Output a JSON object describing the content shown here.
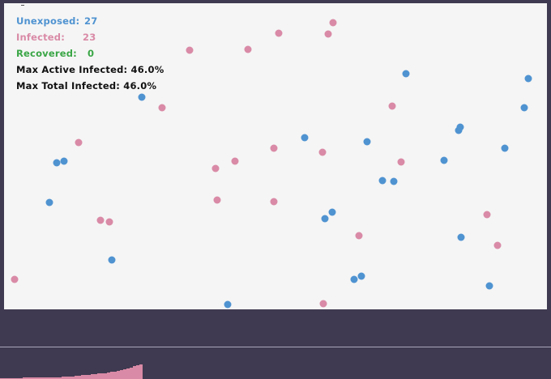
{
  "stats": {
    "unexposed_label": "Unexposed:",
    "unexposed_value": "27",
    "infected_label": "Infected:",
    "infected_value": "23",
    "recovered_label": "Recovered:",
    "recovered_value": "0",
    "max_active_label": "Max Active Infected:",
    "max_active_value": "46.0%",
    "max_total_label": "Max Total Infected:",
    "max_total_value": "46.0%"
  },
  "colors": {
    "unexposed": "#4f93d1",
    "infected": "#d98aa6",
    "recovered": "#3aa646",
    "arena_background": "#f5f5f5",
    "page_background": "#3f3a51"
  },
  "infected_history_percent": [
    2,
    2,
    2,
    3,
    3,
    3,
    3,
    4,
    4,
    4,
    4,
    4,
    5,
    5,
    5,
    5,
    5,
    6,
    6,
    7,
    7,
    8,
    8,
    9,
    10,
    12,
    13,
    14,
    15,
    16,
    17,
    18,
    19,
    20,
    22,
    24,
    26,
    28,
    30,
    33,
    36,
    40,
    43,
    46
  ]
}
